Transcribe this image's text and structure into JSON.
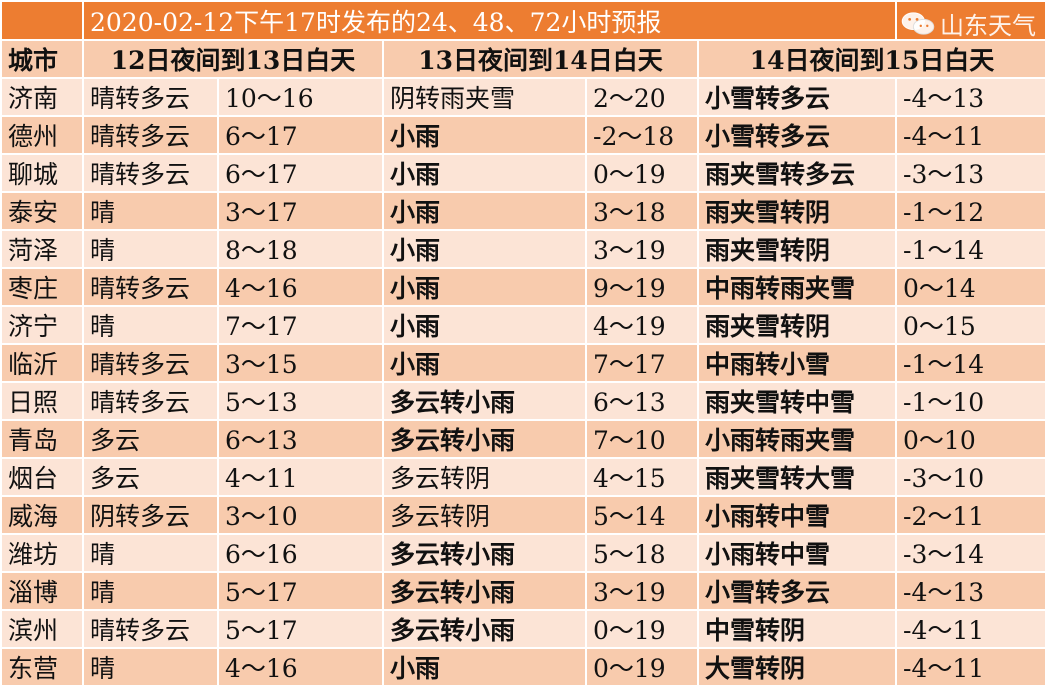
{
  "title": "2020-02-12下午17时发布的24、48、72小时预报",
  "headers": {
    "city": "城市",
    "p1": "12日夜间到13日白天",
    "p2": "13日夜间到14日白天",
    "p3": "14日夜间到15日白天"
  },
  "rows": [
    {
      "city": "济南",
      "w1": "晴转多云",
      "t1": "10～16",
      "w2": "阴转雨夹雪",
      "w2bold": false,
      "t2": "2～20",
      "w3": "小雪转多云",
      "t3": "-4～13"
    },
    {
      "city": "德州",
      "w1": "晴转多云",
      "t1": "6～17",
      "w2": "小雨",
      "w2bold": true,
      "t2": "-2～18",
      "w3": "小雪转多云",
      "t3": "-4～11"
    },
    {
      "city": "聊城",
      "w1": "晴转多云",
      "t1": "6～17",
      "w2": "小雨",
      "w2bold": true,
      "t2": "0～19",
      "w3": "雨夹雪转多云",
      "t3": "-3～13"
    },
    {
      "city": "泰安",
      "w1": "晴",
      "t1": "3～17",
      "w2": "小雨",
      "w2bold": true,
      "t2": "3～18",
      "w3": "雨夹雪转阴",
      "t3": "-1～12"
    },
    {
      "city": "菏泽",
      "w1": "晴",
      "t1": "8～18",
      "w2": "小雨",
      "w2bold": true,
      "t2": "3～19",
      "w3": "雨夹雪转阴",
      "t3": "-1～14"
    },
    {
      "city": "枣庄",
      "w1": "晴转多云",
      "t1": "4～16",
      "w2": "小雨",
      "w2bold": true,
      "t2": "9～19",
      "w3": "中雨转雨夹雪",
      "t3": "0～14"
    },
    {
      "city": "济宁",
      "w1": "晴",
      "t1": "7～17",
      "w2": "小雨",
      "w2bold": true,
      "t2": "4～19",
      "w3": "雨夹雪转阴",
      "t3": "0～15"
    },
    {
      "city": "临沂",
      "w1": "晴转多云",
      "t1": "3～15",
      "w2": "小雨",
      "w2bold": true,
      "t2": "7～17",
      "w3": "中雨转小雪",
      "t3": "-1～14"
    },
    {
      "city": "日照",
      "w1": "晴转多云",
      "t1": "5～13",
      "w2": "多云转小雨",
      "w2bold": true,
      "t2": "6～13",
      "w3": "雨夹雪转中雪",
      "t3": "-1～10"
    },
    {
      "city": "青岛",
      "w1": "多云",
      "t1": "6～13",
      "w2": "多云转小雨",
      "w2bold": true,
      "t2": "7～10",
      "w3": "小雨转雨夹雪",
      "t3": "0～10"
    },
    {
      "city": "烟台",
      "w1": "多云",
      "t1": "4～11",
      "w2": "多云转阴",
      "w2bold": false,
      "t2": "4～15",
      "w3": "雨夹雪转大雪",
      "t3": "-3～10"
    },
    {
      "city": "威海",
      "w1": "阴转多云",
      "t1": "3～10",
      "w2": "多云转阴",
      "w2bold": false,
      "t2": "5～14",
      "w3": "小雨转中雪",
      "t3": "-2～11"
    },
    {
      "city": "潍坊",
      "w1": "晴",
      "t1": "6～16",
      "w2": "多云转小雨",
      "w2bold": true,
      "t2": "5～18",
      "w3": "小雨转中雪",
      "t3": "-3～14"
    },
    {
      "city": "淄博",
      "w1": "晴",
      "t1": "5～17",
      "w2": "多云转小雨",
      "w2bold": true,
      "t2": "3～19",
      "w3": "小雪转多云",
      "t3": "-4～13"
    },
    {
      "city": "滨州",
      "w1": "晴转多云",
      "t1": "5～17",
      "w2": "多云转小雨",
      "w2bold": true,
      "t2": "0～19",
      "w3": "中雪转阴",
      "t3": "-4～11"
    },
    {
      "city": "东营",
      "w1": "晴",
      "t1": "4～16",
      "w2": "小雨",
      "w2bold": true,
      "t2": "0～19",
      "w3": "大雪转阴",
      "t3": "-4～11"
    }
  ],
  "watermark": "山东天气",
  "colors": {
    "title_bg": "#ed7d31",
    "row_light": "#fce4d6",
    "row_dark": "#f8cbad"
  }
}
